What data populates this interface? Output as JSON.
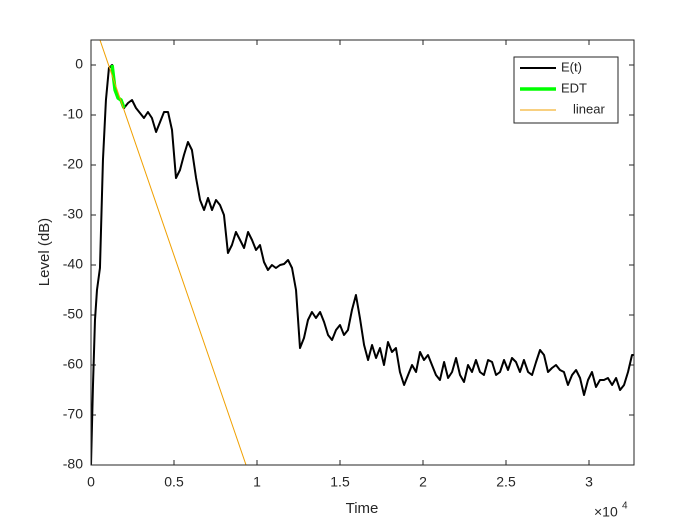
{
  "chart_data": {
    "type": "line",
    "xlabel": "Time",
    "ylabel": "Level (dB)",
    "x_exponent": {
      "base": "×10",
      "power": "4"
    },
    "xlim": [
      0,
      3.271
    ],
    "ylim": [
      -80,
      5
    ],
    "xticks": [
      0,
      0.5,
      1,
      1.5,
      2,
      2.5,
      3
    ],
    "yticks": [
      -80,
      -70,
      -60,
      -50,
      -40,
      -30,
      -20,
      -10,
      0
    ],
    "grid": false,
    "legend": "top-right",
    "series": [
      {
        "name": "E(t)",
        "color": "#000000",
        "width": 2,
        "x": [
          0,
          0.012,
          0.024,
          0.036,
          0.054,
          0.072,
          0.09,
          0.108,
          0.127,
          0.145,
          0.163,
          0.181,
          0.199,
          0.223,
          0.247,
          0.271,
          0.295,
          0.319,
          0.343,
          0.367,
          0.392,
          0.416,
          0.44,
          0.464,
          0.488,
          0.512,
          0.536,
          0.56,
          0.584,
          0.608,
          0.633,
          0.657,
          0.681,
          0.705,
          0.729,
          0.753,
          0.777,
          0.801,
          0.825,
          0.849,
          0.873,
          0.898,
          0.922,
          0.946,
          0.97,
          0.994,
          1.018,
          1.042,
          1.066,
          1.09,
          1.114,
          1.139,
          1.163,
          1.187,
          1.211,
          1.235,
          1.259,
          1.283,
          1.307,
          1.331,
          1.355,
          1.38,
          1.404,
          1.428,
          1.452,
          1.476,
          1.5,
          1.524,
          1.548,
          1.572,
          1.596,
          1.62,
          1.645,
          1.669,
          1.693,
          1.717,
          1.741,
          1.765,
          1.789,
          1.813,
          1.837,
          1.861,
          1.886,
          1.91,
          1.934,
          1.958,
          1.982,
          2.006,
          2.03,
          2.054,
          2.078,
          2.102,
          2.127,
          2.151,
          2.175,
          2.199,
          2.223,
          2.247,
          2.271,
          2.295,
          2.319,
          2.343,
          2.367,
          2.392,
          2.416,
          2.44,
          2.464,
          2.488,
          2.512,
          2.536,
          2.56,
          2.584,
          2.608,
          2.633,
          2.657,
          2.681,
          2.705,
          2.729,
          2.753,
          2.777,
          2.801,
          2.825,
          2.849,
          2.873,
          2.898,
          2.922,
          2.946,
          2.97,
          2.994,
          3.018,
          3.042,
          3.066,
          3.09,
          3.114,
          3.139,
          3.163,
          3.187,
          3.211,
          3.235,
          3.259,
          3.271
        ],
        "values": [
          -80,
          -64,
          -51,
          -45,
          -40.6,
          -19,
          -7,
          -0.6,
          0,
          -5,
          -6.6,
          -7,
          -8.6,
          -7.6,
          -7,
          -8.6,
          -9.6,
          -10.6,
          -9.4,
          -10.6,
          -13.4,
          -11.4,
          -9.4,
          -9.4,
          -13,
          -22.6,
          -21,
          -18,
          -15.4,
          -17,
          -22.6,
          -27,
          -29,
          -26.6,
          -29,
          -27,
          -28,
          -30,
          -37.6,
          -36,
          -33.4,
          -35,
          -36.6,
          -33.4,
          -35,
          -37,
          -36,
          -39.4,
          -41,
          -40,
          -40.6,
          -40,
          -39.8,
          -39,
          -40.6,
          -45,
          -56.6,
          -54.6,
          -51,
          -49.4,
          -50.6,
          -49.4,
          -51.4,
          -54,
          -55,
          -53,
          -52,
          -54,
          -53,
          -49,
          -46,
          -50.6,
          -56,
          -59,
          -56,
          -58.6,
          -56.6,
          -60,
          -55.4,
          -57.4,
          -56.6,
          -61.4,
          -64,
          -62,
          -60,
          -61.4,
          -57.4,
          -59,
          -58,
          -60,
          -62,
          -63,
          -59.4,
          -62.6,
          -61.4,
          -58.6,
          -62,
          -63.4,
          -60,
          -61.4,
          -59,
          -61.4,
          -62,
          -59,
          -59.4,
          -62,
          -61.4,
          -59,
          -61,
          -58.6,
          -59.4,
          -61.4,
          -59,
          -61.4,
          -62,
          -59.4,
          -57,
          -58,
          -61.4,
          -60.6,
          -60,
          -61,
          -61.4,
          -64,
          -62,
          -61,
          -62.6,
          -66,
          -63,
          -61.4,
          -64.4,
          -63,
          -63,
          -62.6,
          -64,
          -62.6,
          -65,
          -64,
          -61.4,
          -58,
          -58
        ]
      },
      {
        "name": "EDT",
        "color": "#00ff00",
        "width": 3.5,
        "x": [
          0.127,
          0.145,
          0.163,
          0.181,
          0.199
        ],
        "values": [
          0,
          -5,
          -6.6,
          -7,
          -8.6
        ]
      },
      {
        "name": "linear",
        "color": "#f0a000",
        "width": 1,
        "x": [
          0.054,
          0.934
        ],
        "values": [
          5,
          -80
        ]
      }
    ]
  }
}
